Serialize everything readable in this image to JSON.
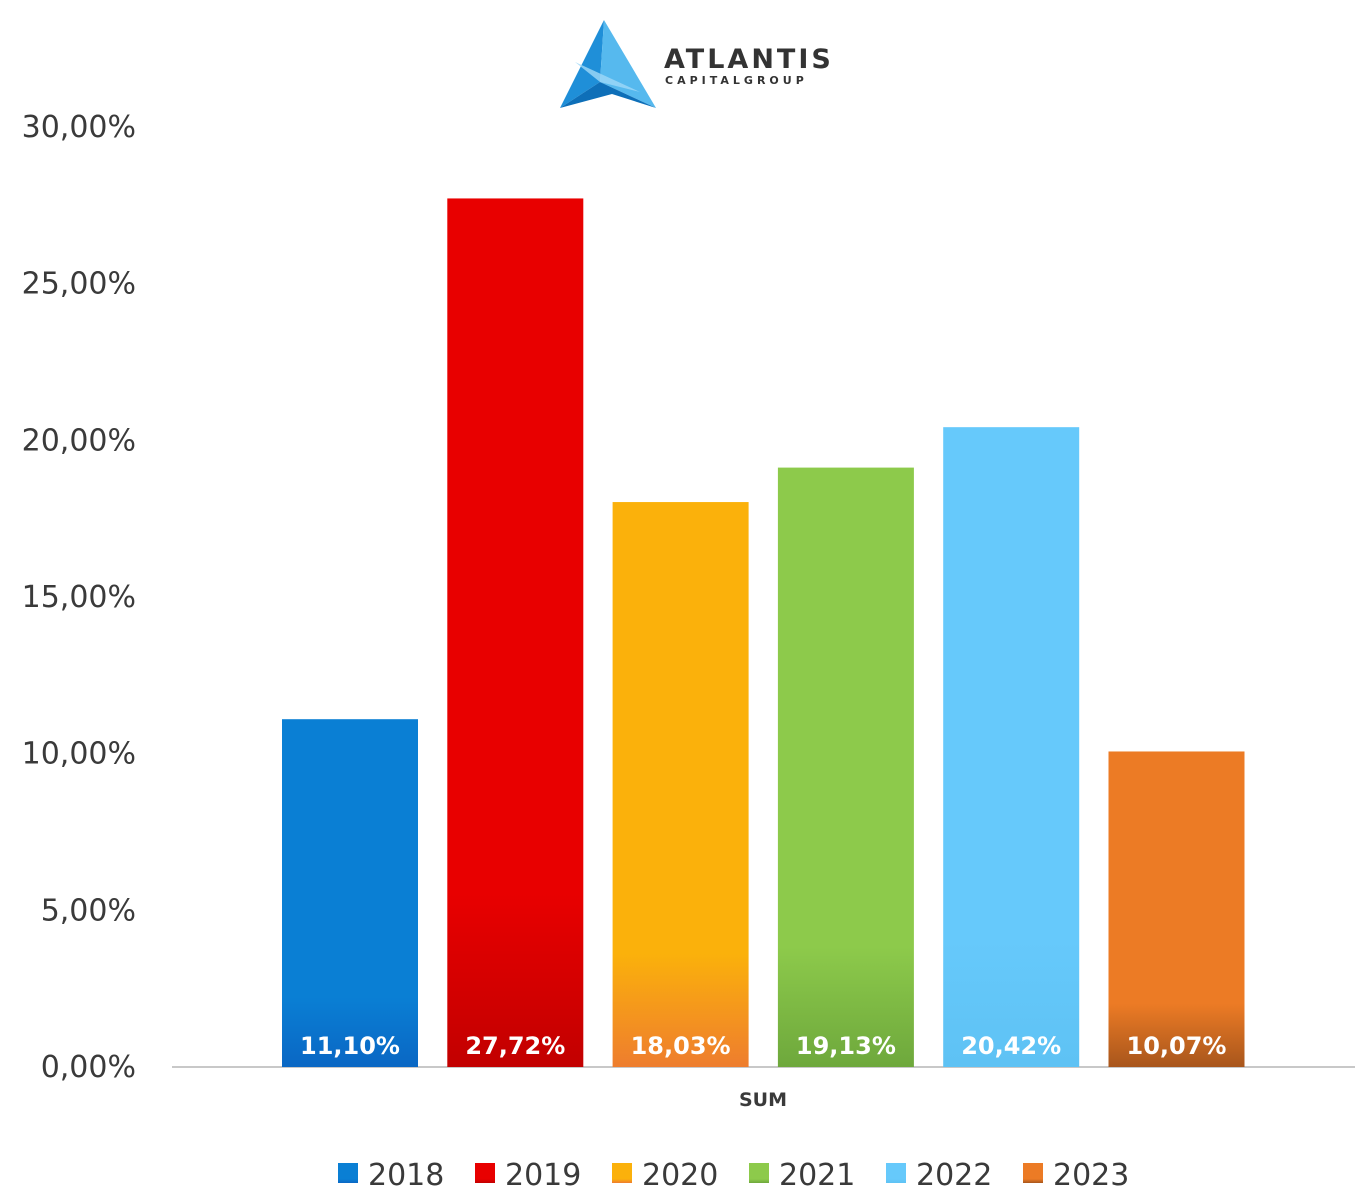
{
  "logo": {
    "name": "ATLANTIS",
    "tagline": "CAPITALGROUP"
  },
  "chart_data": {
    "type": "bar",
    "title": "",
    "xlabel": "",
    "ylabel": "",
    "categories": [
      "SUM"
    ],
    "ylim": [
      0,
      30
    ],
    "yticks": [
      "0,00%",
      "5,00%",
      "10,00%",
      "15,00%",
      "20,00%",
      "25,00%",
      "30,00%"
    ],
    "grid": false,
    "legend_position": "bottom",
    "series": [
      {
        "name": "2018",
        "values": [
          11.1
        ],
        "label": "11,10%",
        "color": "#0a7fd4",
        "color_dark": "#0a67c4"
      },
      {
        "name": "2019",
        "values": [
          27.72
        ],
        "label": "27,72%",
        "color": "#e80000",
        "color_dark": "#c20000"
      },
      {
        "name": "2020",
        "values": [
          18.03
        ],
        "label": "18,03%",
        "color": "#fbb10b",
        "color_dark": "#ee7d2e"
      },
      {
        "name": "2021",
        "values": [
          19.13
        ],
        "label": "19,13%",
        "color": "#8dca4b",
        "color_dark": "#6ea83c"
      },
      {
        "name": "2022",
        "values": [
          20.42
        ],
        "label": "20,42%",
        "color": "#66c9fb",
        "color_dark": "#5ec2f4"
      },
      {
        "name": "2023",
        "values": [
          10.07
        ],
        "label": "10,07%",
        "color": "#ec7b25",
        "color_dark": "#a8561c"
      }
    ]
  }
}
